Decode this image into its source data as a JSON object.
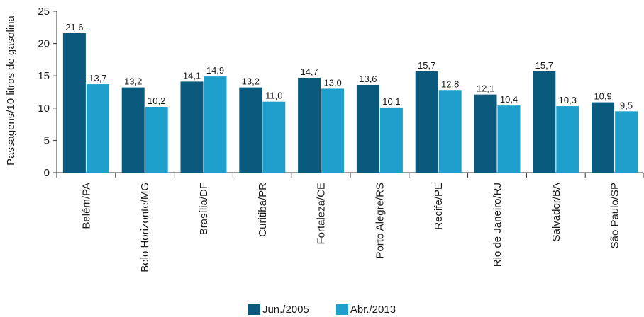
{
  "chart_data": {
    "type": "bar",
    "title": "",
    "xlabel": "",
    "ylabel": "Passagens/10 litros de gasolina",
    "ylim": [
      0,
      25
    ],
    "yticks": [
      "0",
      "5",
      "10",
      "15",
      "20",
      "25"
    ],
    "grid": false,
    "legend_position": "bottom-center",
    "categories": [
      "Belém/PA",
      "Belo Horizonte/MG",
      "Brasília/DF",
      "Curitiba/PR",
      "Fortaleza/CE",
      "Porto Alegre/RS",
      "Recife/PE",
      "Rio de Janeiro/RJ",
      "Salvador/BA",
      "São Paulo/SP"
    ],
    "series": [
      {
        "name": "Jun./2005",
        "color": "#0a5a7e",
        "values": [
          21.6,
          13.2,
          14.1,
          13.2,
          14.7,
          13.6,
          15.7,
          12.1,
          15.7,
          10.9
        ],
        "labels": [
          "21,6",
          "13,2",
          "14,1",
          "13,2",
          "14,7",
          "13,6",
          "15,7",
          "12,1",
          "15,7",
          "10,9"
        ]
      },
      {
        "name": "Abr./2013",
        "color": "#1f9fcc",
        "values": [
          13.7,
          10.2,
          14.9,
          11.0,
          13.0,
          10.1,
          12.8,
          10.4,
          10.3,
          9.5
        ],
        "labels": [
          "13,7",
          "10,2",
          "14,9",
          "11,0",
          "13,0",
          "10,1",
          "12,8",
          "10,4",
          "10,3",
          "9,5"
        ]
      }
    ]
  }
}
